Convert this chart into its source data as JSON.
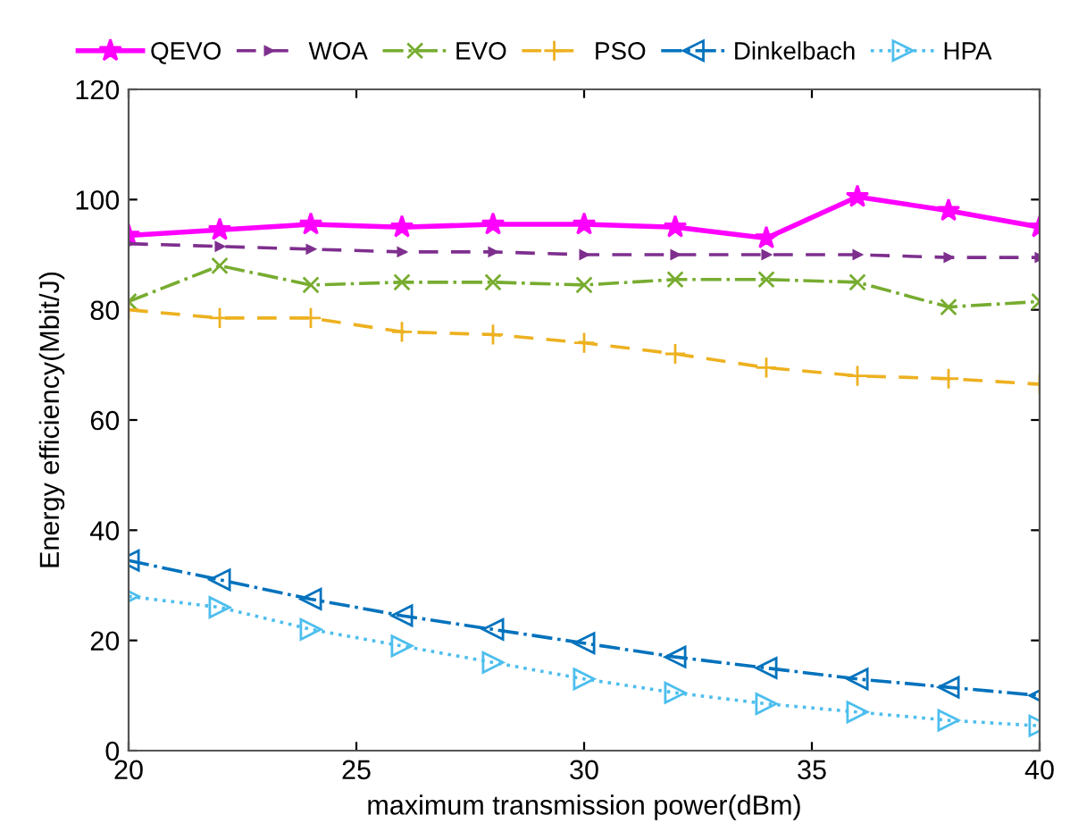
{
  "chart_data": {
    "type": "line",
    "xlabel": "maximum transmission power(dBm)",
    "ylabel": "Energy efficiency(Mbit/J)",
    "x": [
      20,
      22,
      24,
      26,
      28,
      30,
      32,
      34,
      36,
      38,
      40
    ],
    "xlim": [
      20,
      40
    ],
    "xticks": [
      20,
      25,
      30,
      35,
      40
    ],
    "ylim": [
      0,
      120
    ],
    "yticks": [
      0,
      20,
      40,
      60,
      80,
      100,
      120
    ],
    "grid": false,
    "legend": "top",
    "series": [
      {
        "name": "QEVO",
        "color": "#ff00ff",
        "marker": "star",
        "line_style": "solid",
        "values": [
          93.5,
          94.5,
          95.5,
          95,
          95.5,
          95.5,
          95,
          93,
          100.5,
          98,
          95
        ]
      },
      {
        "name": "WOA",
        "color": "#7e2f8e",
        "marker": "triangle-right-small",
        "line_style": "dashed",
        "values": [
          92,
          91.5,
          91,
          90.5,
          90.5,
          90,
          90,
          90,
          90,
          89.5,
          89.5
        ]
      },
      {
        "name": "EVO",
        "color": "#77ac30",
        "marker": "cross",
        "line_style": "dashdot",
        "values": [
          81.5,
          88,
          84.5,
          85,
          85,
          84.5,
          85.5,
          85.5,
          85,
          80.5,
          81.5
        ]
      },
      {
        "name": "PSO",
        "color": "#edb120",
        "marker": "plus",
        "line_style": "dashed",
        "values": [
          80,
          78.5,
          78.5,
          76,
          75.5,
          74,
          72,
          69.5,
          68,
          67.5,
          66.5
        ]
      },
      {
        "name": "Dinkelbach",
        "color": "#0072bd",
        "marker": "triangle-left",
        "line_style": "dashdot",
        "values": [
          34.5,
          31,
          27.5,
          24.5,
          22,
          19.5,
          17,
          15,
          13,
          11.5,
          10
        ]
      },
      {
        "name": "HPA",
        "color": "#4dbeee",
        "marker": "triangle-right",
        "line_style": "dotted",
        "values": [
          28,
          26,
          22,
          19,
          16,
          13,
          10.5,
          8.5,
          7,
          5.5,
          4.5
        ]
      }
    ]
  }
}
